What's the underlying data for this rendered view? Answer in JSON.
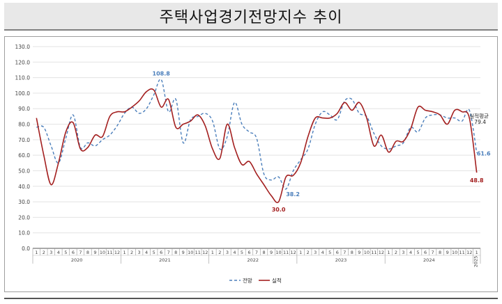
{
  "title": "주택사업경기전망지수 추이",
  "colors": {
    "forecast": "#4a7ebb",
    "actual": "#a31f1f",
    "grid": "#e3e3e3",
    "axis": "#555555"
  },
  "chart_data": {
    "type": "line",
    "ylim": [
      0,
      130
    ],
    "yticks": [
      "0.0",
      "10.0",
      "20.0",
      "30.0",
      "40.0",
      "50.0",
      "60.0",
      "70.0",
      "80.0",
      "90.0",
      "100.0",
      "110.0",
      "120.0",
      "130.0"
    ],
    "grid": true,
    "legend_position": "bottom-center",
    "month_labels": [
      "1",
      "2",
      "3",
      "4",
      "5",
      "6",
      "7",
      "8",
      "9",
      "10",
      "11",
      "12",
      "1",
      "2",
      "3",
      "4",
      "5",
      "6",
      "7",
      "8",
      "9",
      "10",
      "11",
      "12",
      "1",
      "2",
      "3",
      "4",
      "5",
      "6",
      "7",
      "8",
      "9",
      "10",
      "11",
      "12",
      "1",
      "2",
      "3",
      "4",
      "5",
      "6",
      "7",
      "8",
      "9",
      "10",
      "11",
      "12",
      "1",
      "2",
      "3",
      "4",
      "5",
      "6",
      "7",
      "8",
      "9",
      "10",
      "11",
      "12",
      "1"
    ],
    "year_labels": [
      {
        "label": "2020",
        "start": 0,
        "end": 11
      },
      {
        "label": "2021",
        "start": 12,
        "end": 23
      },
      {
        "label": "2022",
        "start": 24,
        "end": 35
      },
      {
        "label": "2023",
        "start": 36,
        "end": 47
      },
      {
        "label": "2024",
        "start": 48,
        "end": 59
      },
      {
        "label": "2025",
        "start": 60,
        "end": 60
      }
    ],
    "series": [
      {
        "name": "전망",
        "style": "dashed",
        "values": [
          78.0,
          78.0,
          66.0,
          55.0,
          71.0,
          86.0,
          65.0,
          68.0,
          66.0,
          70.0,
          73.0,
          79.0,
          87.0,
          91.0,
          87.0,
          90.0,
          99.0,
          108.8,
          88.0,
          96.0,
          68.0,
          83.0,
          85.0,
          87.0,
          82.0,
          64.0,
          72.0,
          94.0,
          80.0,
          75.0,
          71.0,
          48.0,
          44.0,
          46.0,
          38.2,
          50.0,
          57.0,
          64.0,
          80.0,
          88.0,
          86.0,
          83.0,
          95.0,
          96.0,
          87.0,
          85.0,
          74.0,
          66.0,
          64.0,
          66.0,
          68.0,
          78.0,
          75.0,
          84.0,
          86.0,
          86.0,
          84.0,
          84.0,
          82.0,
          89.0,
          61.6
        ]
      },
      {
        "name": "실적",
        "style": "solid",
        "values": [
          84.0,
          60.0,
          41.0,
          55.0,
          75.0,
          81.0,
          64.0,
          65.0,
          73.0,
          72.0,
          85.0,
          88.0,
          88.0,
          91.0,
          95.0,
          101.0,
          102.0,
          91.0,
          96.0,
          78.0,
          80.0,
          82.0,
          86.0,
          79.0,
          64.0,
          58.0,
          80.0,
          65.0,
          54.0,
          56.0,
          48.0,
          41.0,
          34.0,
          30.0,
          46.0,
          47.0,
          55.0,
          72.0,
          84.0,
          84.0,
          84.0,
          87.0,
          94.0,
          89.0,
          94.0,
          84.0,
          66.0,
          73.0,
          62.0,
          69.0,
          69.0,
          77.0,
          91.0,
          89.0,
          88.0,
          86.0,
          80.0,
          89.0,
          88.0,
          84.0,
          48.8
        ]
      }
    ],
    "annotations": [
      {
        "text": "108.8",
        "series": 0,
        "index": 17,
        "color": "#4a7ebb"
      },
      {
        "text": "38.2",
        "series": 0,
        "index": 34,
        "color": "#4a7ebb"
      },
      {
        "text": "61.6",
        "series": 0,
        "index": 60,
        "color": "#4a7ebb"
      },
      {
        "text": "30.0",
        "series": 1,
        "index": 33,
        "color": "#a31f1f"
      },
      {
        "text": "48.8",
        "series": 1,
        "index": 60,
        "color": "#a31f1f"
      }
    ],
    "side_note": {
      "label": "실적평균",
      "value": "79.4"
    },
    "legend": [
      {
        "name": "전망",
        "style": "dashed"
      },
      {
        "name": "실적",
        "style": "solid"
      }
    ]
  }
}
